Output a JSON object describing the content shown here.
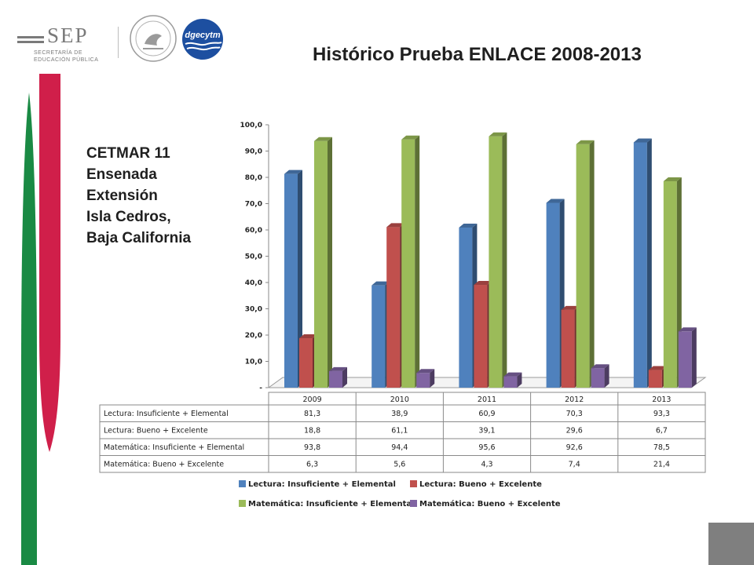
{
  "header": {
    "sep_word": "SEP",
    "sep_line1": "SECRETARÍA DE",
    "sep_line2": "EDUCACIÓN PÚBLICA",
    "dgec_text": "dgecytm"
  },
  "title": "Histórico Prueba ENLACE 2008-2013",
  "school_lines": [
    "CETMAR 11",
    "Ensenada",
    "Extensión",
    "Isla Cedros,",
    "Baja California"
  ],
  "colors": {
    "blue": "#4f81bd",
    "red": "#c0504d",
    "green": "#9bbb59",
    "purple": "#8064a2",
    "deco_green": "#1a8a44",
    "deco_red": "#d01f4a",
    "dgec_blue": "#1d4fa0"
  },
  "chart_data": {
    "type": "bar",
    "variant": "3d-clustered-column-with-data-table",
    "categories": [
      "2009",
      "2010",
      "2011",
      "2012",
      "2013"
    ],
    "series": [
      {
        "name": "Lectura: Insuficiente + Elemental",
        "color": "#4f81bd",
        "values": [
          81.3,
          38.9,
          60.9,
          70.3,
          93.3
        ]
      },
      {
        "name": "Lectura: Bueno + Excelente",
        "color": "#c0504d",
        "values": [
          18.8,
          61.1,
          39.1,
          29.6,
          6.7
        ]
      },
      {
        "name": "Matemática: Insuficiente + Elemental",
        "color": "#9bbb59",
        "values": [
          93.8,
          94.4,
          95.6,
          92.6,
          78.5
        ]
      },
      {
        "name": "Matemática: Bueno + Excelente",
        "color": "#8064a2",
        "values": [
          6.3,
          5.6,
          4.3,
          7.4,
          21.4
        ]
      }
    ],
    "ylim": [
      0,
      100
    ],
    "y_ticks": [
      "-",
      "10,0",
      "20,0",
      "30,0",
      "40,0",
      "50,0",
      "60,0",
      "70,0",
      "80,0",
      "90,0",
      "100,0"
    ],
    "table_rows": [
      {
        "label": "Lectura: Insuficiente + Elemental",
        "values": [
          "81,3",
          "38,9",
          "60,9",
          "70,3",
          "93,3"
        ]
      },
      {
        "label": "Lectura: Bueno + Excelente",
        "values": [
          "18,8",
          "61,1",
          "39,1",
          "29,6",
          "6,7"
        ]
      },
      {
        "label": "Matemática: Insuficiente + Elemental",
        "values": [
          "93,8",
          "94,4",
          "95,6",
          "92,6",
          "78,5"
        ]
      },
      {
        "label": "Matemática: Bueno + Excelente",
        "values": [
          "6,3",
          "5,6",
          "4,3",
          "7,4",
          "21,4"
        ]
      }
    ],
    "legend_position": "bottom"
  }
}
